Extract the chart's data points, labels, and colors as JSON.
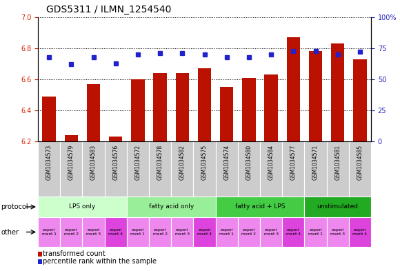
{
  "title": "GDS5311 / ILMN_1254540",
  "samples": [
    "GSM1034573",
    "GSM1034579",
    "GSM1034583",
    "GSM1034576",
    "GSM1034572",
    "GSM1034578",
    "GSM1034582",
    "GSM1034575",
    "GSM1034574",
    "GSM1034580",
    "GSM1034584",
    "GSM1034577",
    "GSM1034571",
    "GSM1034581",
    "GSM1034585"
  ],
  "transformed_count": [
    6.49,
    6.24,
    6.57,
    6.23,
    6.6,
    6.64,
    6.64,
    6.67,
    6.55,
    6.61,
    6.63,
    6.87,
    6.78,
    6.83,
    6.73
  ],
  "percentile_rank": [
    68,
    62,
    68,
    63,
    70,
    71,
    71,
    70,
    68,
    68,
    70,
    73,
    73,
    70,
    72
  ],
  "ylim_left": [
    6.2,
    7.0
  ],
  "ylim_right": [
    0,
    100
  ],
  "yticks_left": [
    6.2,
    6.4,
    6.6,
    6.8,
    7.0
  ],
  "yticks_right": [
    0,
    25,
    50,
    75,
    100
  ],
  "ytick_labels_right": [
    "0",
    "25",
    "50",
    "75",
    "100%"
  ],
  "bar_color": "#bb1100",
  "dot_color": "#2222cc",
  "protocol_groups": [
    {
      "label": "LPS only",
      "start": 0,
      "end": 4,
      "color": "#ccffcc"
    },
    {
      "label": "fatty acid only",
      "start": 4,
      "end": 8,
      "color": "#99ee99"
    },
    {
      "label": "fatty acid + LPS",
      "start": 8,
      "end": 12,
      "color": "#44cc44"
    },
    {
      "label": "unstimulated",
      "start": 12,
      "end": 15,
      "color": "#22aa22"
    }
  ],
  "other_labels": [
    "experi\nment 1",
    "experi\nment 2",
    "experi\nment 3",
    "experi\nment 4",
    "experi\nment 1",
    "experi\nment 2",
    "experi\nment 3",
    "experi\nment 4",
    "experi\nment 1",
    "experi\nment 2",
    "experi\nment 3",
    "experi\nment 4",
    "experi\nment 1",
    "experi\nment 3",
    "experi\nment 4"
  ],
  "other_colors": [
    "#ee88ee",
    "#ee88ee",
    "#ee88ee",
    "#dd44dd",
    "#ee88ee",
    "#ee88ee",
    "#ee88ee",
    "#dd44dd",
    "#ee88ee",
    "#ee88ee",
    "#ee88ee",
    "#dd44dd",
    "#ee88ee",
    "#ee88ee",
    "#dd44dd"
  ],
  "legend_bar_label": "transformed count",
  "legend_dot_label": "percentile rank within the sample",
  "bar_color_label": "#bb1100",
  "dot_color_label": "#2222cc",
  "left_tick_color": "#cc2200",
  "right_tick_color": "#2222bb",
  "sample_bg_color": "#cccccc",
  "title_fontsize": 10,
  "tick_fontsize": 7,
  "label_fontsize": 7
}
